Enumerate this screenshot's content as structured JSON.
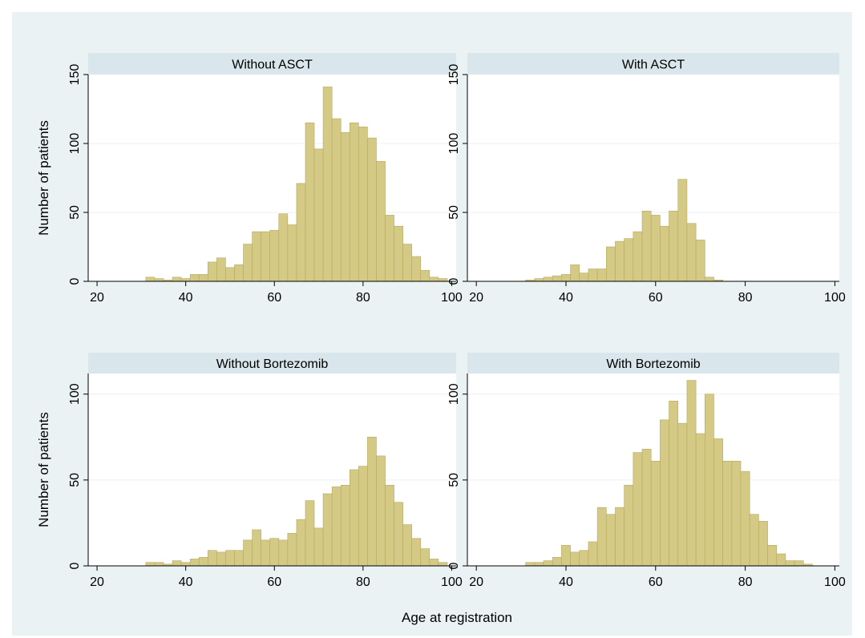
{
  "figure": {
    "xlabel": "Age at registration",
    "colors": {
      "background": "#eaf2f3",
      "plot_bg": "#ffffff",
      "strip_bg": "#d9e6eb",
      "bar_fill": "#d4c985",
      "bar_edge": "#b5aa60",
      "grid": "#eaf2f3"
    }
  },
  "chart_data": [
    {
      "type": "bar",
      "title": "Without ASCT",
      "ylabel": "Number of patients",
      "xlim": [
        18,
        101
      ],
      "ylim": [
        0,
        150
      ],
      "xticks": [
        20,
        40,
        60,
        80,
        100
      ],
      "yticks": [
        0,
        50,
        100,
        150
      ],
      "bin_start": 31,
      "bin_width": 2,
      "values": [
        3,
        2,
        1,
        3,
        2,
        5,
        5,
        14,
        17,
        10,
        12,
        27,
        36,
        36,
        37,
        49,
        41,
        71,
        115,
        96,
        141,
        118,
        108,
        115,
        112,
        104,
        87,
        48,
        40,
        27,
        18,
        8,
        3,
        2
      ]
    },
    {
      "type": "bar",
      "title": "With ASCT",
      "ylabel": "",
      "xlim": [
        18,
        101
      ],
      "ylim": [
        0,
        150
      ],
      "xticks": [
        20,
        40,
        60,
        80,
        100
      ],
      "yticks": [
        0,
        50,
        100,
        150
      ],
      "bin_start": 31,
      "bin_width": 2,
      "values": [
        1,
        2,
        3,
        4,
        5,
        12,
        6,
        9,
        9,
        25,
        29,
        31,
        36,
        51,
        48,
        40,
        51,
        74,
        42,
        30,
        3,
        1
      ]
    },
    {
      "type": "bar",
      "title": "Without Bortezomib",
      "ylabel": "Number of patients",
      "xlim": [
        18,
        101
      ],
      "ylim": [
        0,
        112
      ],
      "xticks": [
        20,
        40,
        60,
        80,
        100
      ],
      "yticks": [
        0,
        50,
        100
      ],
      "bin_start": 31,
      "bin_width": 2,
      "values": [
        2,
        2,
        1,
        3,
        2,
        4,
        5,
        9,
        8,
        9,
        9,
        15,
        21,
        15,
        16,
        15,
        19,
        27,
        38,
        22,
        42,
        46,
        47,
        56,
        58,
        75,
        64,
        47,
        37,
        24,
        16,
        10,
        4,
        2
      ]
    },
    {
      "type": "bar",
      "title": "With Bortezomib",
      "ylabel": "",
      "xlim": [
        18,
        101
      ],
      "ylim": [
        0,
        112
      ],
      "xticks": [
        20,
        40,
        60,
        80,
        100
      ],
      "yticks": [
        0,
        50,
        100
      ],
      "bin_start": 31,
      "bin_width": 2,
      "values": [
        2,
        2,
        3,
        5,
        12,
        8,
        9,
        14,
        34,
        30,
        34,
        47,
        66,
        68,
        61,
        85,
        96,
        83,
        108,
        77,
        100,
        74,
        61,
        61,
        55,
        30,
        26,
        12,
        7,
        3,
        3,
        1
      ]
    }
  ]
}
